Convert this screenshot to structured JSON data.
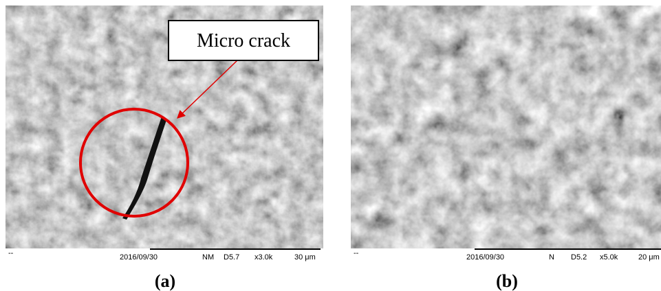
{
  "panels": [
    {
      "label": "(a)",
      "annotation": "Micro crack",
      "info": {
        "marker": "--",
        "date": "2016/09/30",
        "mode": "NM",
        "distance": "D5.7",
        "magnification": "x3.0k",
        "scale": "30 μm"
      }
    },
    {
      "label": "(b)",
      "info": {
        "marker": "--",
        "date": "2016/09/30",
        "mode": "N",
        "distance": "D5.2",
        "magnification": "x5.0k",
        "scale": "20 μm"
      }
    }
  ]
}
